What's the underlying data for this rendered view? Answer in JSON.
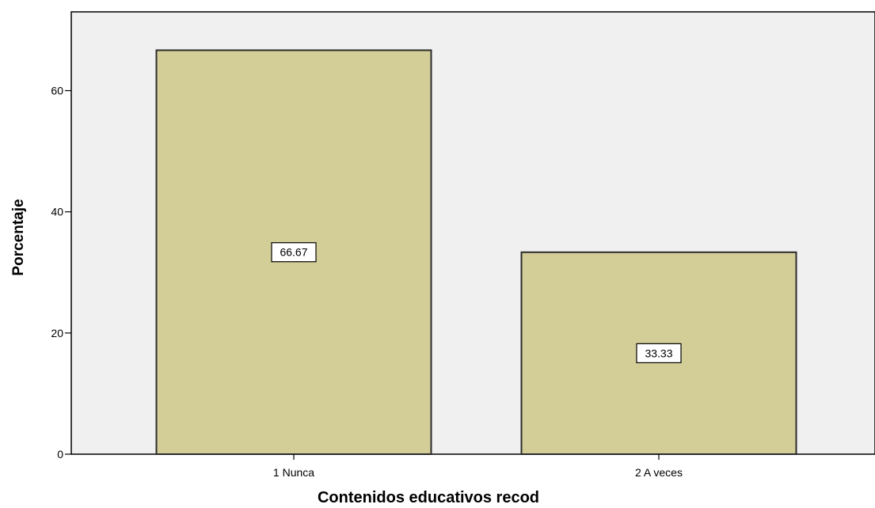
{
  "chart_data": {
    "type": "bar",
    "title": "",
    "categories": [
      "1 Nunca",
      "2 A veces"
    ],
    "values": [
      66.67,
      33.33
    ],
    "data_labels": [
      "66.67",
      "33.33"
    ],
    "xlabel": "Contenidos educativos recod",
    "ylabel": "Porcentaje",
    "ylim": [
      0,
      73
    ],
    "yticks": [
      0,
      20,
      40,
      60
    ],
    "ytick_labels": [
      "0",
      "20",
      "40",
      "60"
    ],
    "grid": false,
    "legend": "none",
    "colors": {
      "plot_background": "#f0f0f0",
      "bar_fill": "#d3ce98",
      "bar_stroke": "#2b2b2b",
      "axis": "#000000",
      "label_box": "#ffffff"
    }
  }
}
